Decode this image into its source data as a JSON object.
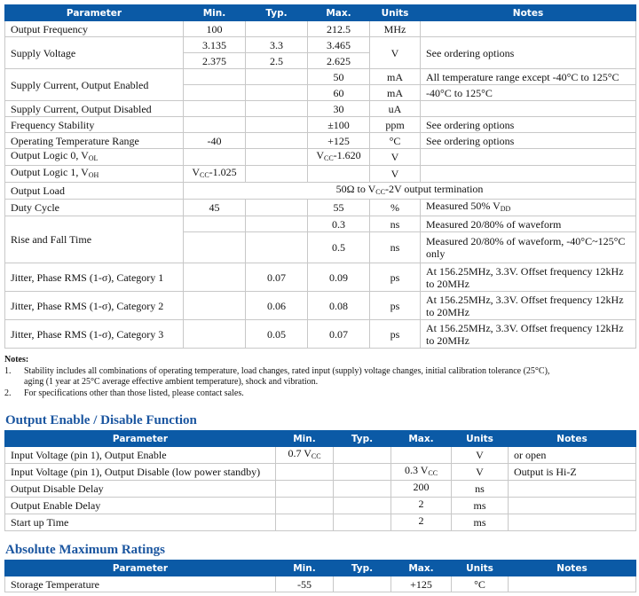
{
  "headers": [
    "Parameter",
    "Min.",
    "Typ.",
    "Max.",
    "Units",
    "Notes"
  ],
  "spec_rows": {
    "freq": {
      "p": "Output Frequency",
      "min": "100",
      "max": "212.5",
      "u": "MHz"
    },
    "sv": {
      "p": "Supply Voltage",
      "min1": "3.135",
      "typ1": "3.3",
      "max1": "3.465",
      "min2": "2.375",
      "typ2": "2.5",
      "max2": "2.625",
      "u": "V",
      "n": "See ordering options"
    },
    "sce": {
      "p": "Supply Current, Output Enabled",
      "max1": "50",
      "u1": "mA",
      "n1": "All temperature range except -40°C to 125°C",
      "max2": "60",
      "u2": "mA",
      "n2": "-40°C to 125°C"
    },
    "scd": {
      "p": "Supply Current, Output Disabled",
      "max": "30",
      "u": "uA"
    },
    "fs": {
      "p": "Frequency Stability",
      "max": "±100",
      "u": "ppm",
      "n": "See ordering options"
    },
    "ot": {
      "p": "Operating Temperature Range",
      "min": "-40",
      "max": "+125",
      "u": "°C",
      "n": "See ordering options"
    },
    "ol0": {
      "p": "Output Logic 0, V",
      "psub": "OL",
      "max": "V",
      "maxsub": "CC",
      "maxrest": "-1.620",
      "u": "V"
    },
    "ol1": {
      "p": "Output Logic 1, V",
      "psub": "OH",
      "min": "V",
      "minsub": "CC",
      "minrest": "-1.025",
      "u": "V"
    },
    "load": {
      "p": "Output Load",
      "v1": "50Ω to V",
      "vsub": "CC",
      "v2": "-2V output termination"
    },
    "duty": {
      "p": "Duty Cycle",
      "min": "45",
      "max": "55",
      "u": "%",
      "n": "Measured 50% V",
      "nsub": "DD"
    },
    "rf": {
      "p": "Rise and Fall Time",
      "max1": "0.3",
      "u1": "ns",
      "n1": "Measured 20/80% of waveform",
      "max2": "0.5",
      "u2": "ns",
      "n2": "Measured 20/80% of waveform, -40°C~125°C only"
    },
    "j1": {
      "p": "Jitter, Phase RMS (1-σ), Category 1",
      "typ": "0.07",
      "max": "0.09",
      "u": "ps",
      "n": "At 156.25MHz, 3.3V. Offset frequency 12kHz to 20MHz"
    },
    "j2": {
      "p": "Jitter, Phase RMS (1-σ), Category 2",
      "typ": "0.06",
      "max": "0.08",
      "u": "ps",
      "n": "At 156.25MHz, 3.3V. Offset frequency 12kHz to 20MHz"
    },
    "j3": {
      "p": "Jitter, Phase RMS (1-σ), Category 3",
      "typ": "0.05",
      "max": "0.07",
      "u": "ps",
      "n": "At 156.25MHz, 3.3V. Offset frequency 12kHz to 20MHz"
    }
  },
  "notes": {
    "title": "Notes:",
    "items": [
      {
        "k": "1.",
        "l1": "Stability includes all combinations of operating temperature, load changes, rated input (supply) voltage changes, initial calibration tolerance (25°C),",
        "l2": "aging (1 year at 25°C average effective ambient temperature), shock and vibration."
      },
      {
        "k": "2.",
        "l1": "For specifications other than those listed, please contact sales."
      }
    ]
  },
  "oe": {
    "title": "Output Enable / Disable Function",
    "rows": [
      {
        "p": "Input Voltage (pin 1), Output Enable",
        "min": "0.7 V",
        "minsub": "CC",
        "max": "",
        "maxsub": "",
        "u": "V",
        "n": "or open"
      },
      {
        "p": "Input Voltage (pin 1), Output Disable (low power standby)",
        "min": "",
        "minsub": "",
        "max": "0.3 V",
        "maxsub": "CC",
        "u": "V",
        "n": "Output is Hi-Z"
      },
      {
        "p": "Output Disable Delay",
        "min": "",
        "minsub": "",
        "max": "200",
        "maxsub": "",
        "u": "ns",
        "n": ""
      },
      {
        "p": "Output Enable Delay",
        "min": "",
        "minsub": "",
        "max": "2",
        "maxsub": "",
        "u": "ms",
        "n": ""
      },
      {
        "p": "Start up Time",
        "min": "",
        "minsub": "",
        "max": "2",
        "maxsub": "",
        "u": "ms",
        "n": ""
      }
    ]
  },
  "amr": {
    "title": "Absolute Maximum Ratings",
    "rows": [
      {
        "p": "Storage Temperature",
        "min": "-55",
        "max": "+125",
        "u": "°C",
        "n": ""
      }
    ]
  }
}
